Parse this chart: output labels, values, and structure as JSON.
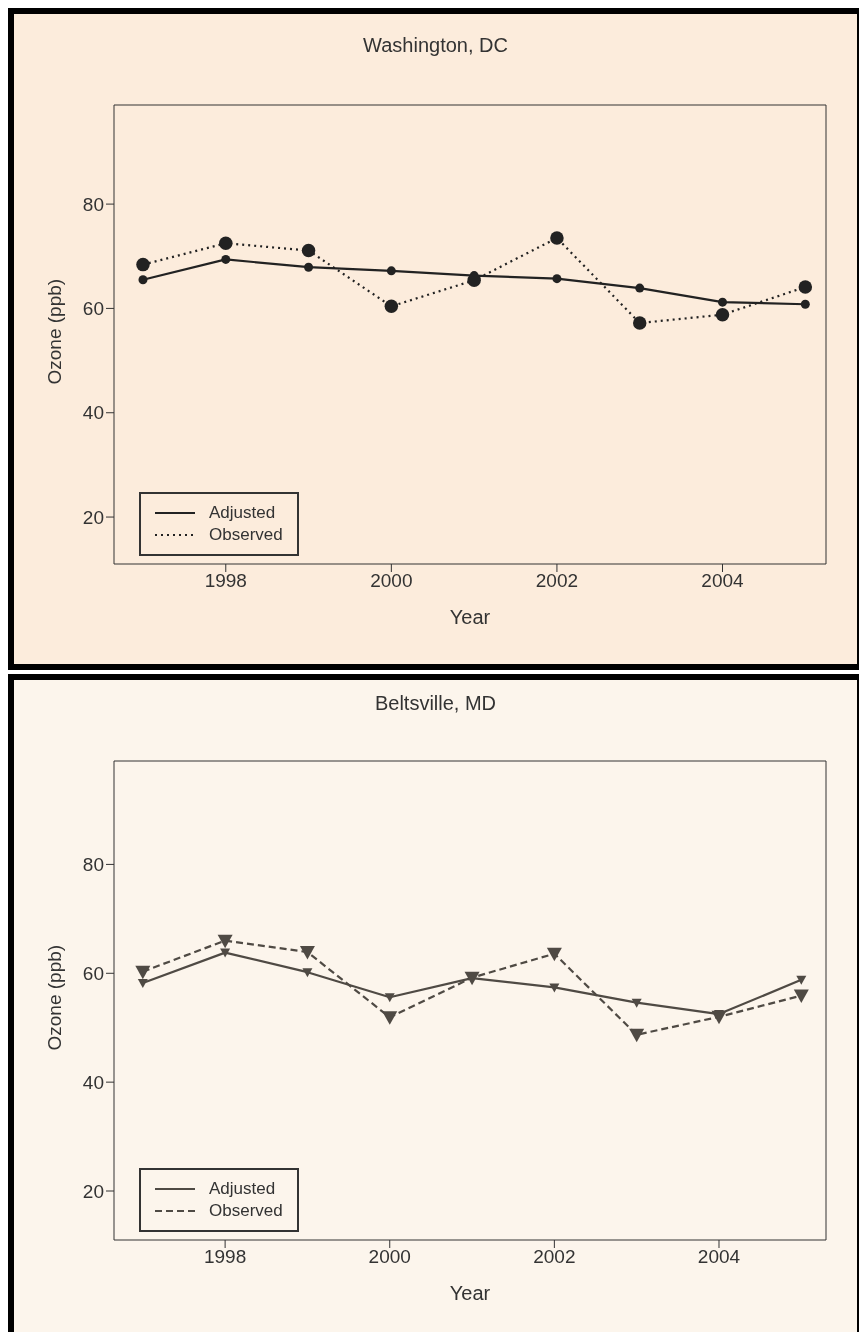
{
  "chart_data": [
    {
      "type": "line",
      "title": "Washington, DC",
      "xlabel": "Year",
      "ylabel": "Ozone (ppb)",
      "x": [
        1997,
        1998,
        1999,
        2000,
        2001,
        2002,
        2003,
        2004,
        2005
      ],
      "xlim": [
        1996.65,
        2005.25
      ],
      "xticks": [
        1998,
        2000,
        2002,
        2004
      ],
      "ylim": [
        11,
        99
      ],
      "yticks": [
        20,
        40,
        60,
        80
      ],
      "legend": "bottom left",
      "grid": false,
      "marker": "circle",
      "series": [
        {
          "name": "Adjusted",
          "color": "#222222",
          "line_style": "solid",
          "values": [
            65.5,
            69.4,
            67.9,
            67.2,
            66.3,
            65.7,
            63.9,
            61.2,
            60.8
          ]
        },
        {
          "name": "Observed",
          "color": "#222222",
          "line_style": "dotted",
          "values": [
            68.4,
            72.5,
            71.1,
            60.4,
            65.4,
            73.5,
            57.2,
            58.8,
            64.1
          ]
        }
      ]
    },
    {
      "type": "line",
      "title": "Beltsville, MD",
      "xlabel": "Year",
      "ylabel": "Ozone (ppb)",
      "x": [
        1997,
        1998,
        1999,
        2000,
        2001,
        2002,
        2003,
        2004,
        2005
      ],
      "xlim": [
        1996.65,
        2005.3
      ],
      "xticks": [
        1998,
        2000,
        2002,
        2004
      ],
      "ylim": [
        11,
        99
      ],
      "yticks": [
        20,
        40,
        60,
        80
      ],
      "legend": "bottom left",
      "grid": false,
      "marker": "triangle",
      "series": [
        {
          "name": "Adjusted",
          "color": "#4f4a44",
          "line_style": "solid",
          "values": [
            58.2,
            63.8,
            60.2,
            55.6,
            59.1,
            57.4,
            54.6,
            52.5,
            58.8
          ]
        },
        {
          "name": "Observed",
          "color": "#4f4a44",
          "line_style": "dashed",
          "values": [
            60.3,
            66.0,
            63.9,
            51.9,
            59.2,
            63.6,
            48.7,
            52.0,
            55.9
          ]
        }
      ]
    }
  ]
}
